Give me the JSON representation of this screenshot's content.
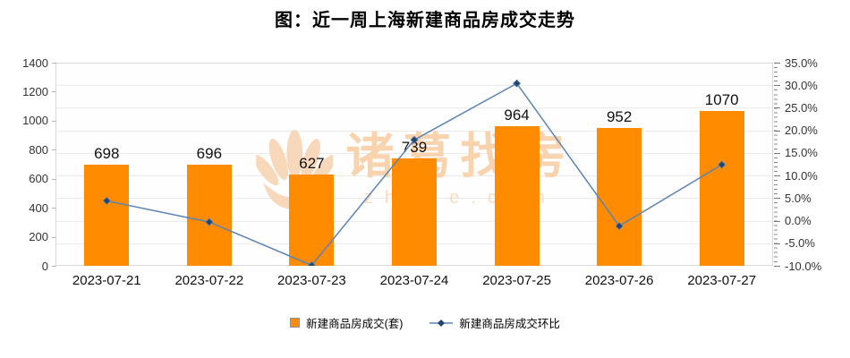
{
  "title": "图：近一周上海新建商品房成交走势",
  "watermark": {
    "brand": "诸葛找房",
    "site": "zhuge.com"
  },
  "legend": [
    {
      "label": "新建商品房成交(套)",
      "type": "bar"
    },
    {
      "label": "新建商品房成交环比",
      "type": "line"
    }
  ],
  "colors": {
    "bar": "#ff8c00",
    "line": "#5b83b6",
    "line_marker": "#26456e",
    "grid": "#ebebeb",
    "plot_border": "#d9d9d9",
    "watermark": "#f8d3ad",
    "text": "#111111"
  },
  "chart_data": {
    "type": "combo bar+line",
    "title": "图：近一周上海新建商品房成交走势",
    "categories": [
      "2023-07-21",
      "2023-07-22",
      "2023-07-23",
      "2023-07-24",
      "2023-07-25",
      "2023-07-26",
      "2023-07-27"
    ],
    "series": [
      {
        "name": "新建商品房成交(套)",
        "type": "bar",
        "y_axis": "left",
        "values": [
          698,
          696,
          627,
          739,
          964,
          952,
          1070
        ],
        "data_labels_shown": true
      },
      {
        "name": "新建商品房成交环比",
        "type": "line",
        "y_axis": "right",
        "unit": "%",
        "values": [
          4.4,
          -0.3,
          -9.9,
          17.9,
          30.4,
          -1.2,
          12.4
        ],
        "marker": "diamond"
      }
    ],
    "left_axis": {
      "min": 0,
      "max": 1400,
      "step": 200,
      "tick_labels": [
        "1400",
        "1200",
        "1000",
        "800",
        "600",
        "400",
        "200",
        "0"
      ]
    },
    "right_axis": {
      "min": -10,
      "max": 35,
      "step": 5,
      "tick_labels": [
        "35.0%",
        "30.0%",
        "25.0%",
        "20.0%",
        "15.0%",
        "10.0%",
        "5.0%",
        "0.0%",
        "-5.0%",
        "-10.0%"
      ],
      "minor_ticks_per_step": 5
    },
    "grid": "horizontal lines at right-axis 5% steps",
    "legend_position": "bottom-center",
    "xlabel": "",
    "ylabel": ""
  }
}
